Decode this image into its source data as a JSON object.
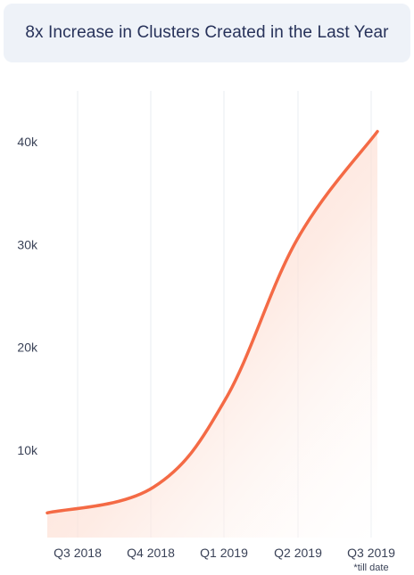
{
  "chart_data": {
    "type": "area",
    "title": "8x Increase in Clusters Created in the Last Year",
    "categories": [
      "Q3 2018",
      "Q4 2018",
      "Q1 2019",
      "Q2 2019",
      "Q3 2019"
    ],
    "series": [
      {
        "values": [
          3900,
          6400,
          15000,
          30500,
          41000
        ]
      }
    ],
    "y_ticks": [
      {
        "value": 10000,
        "label": "10k"
      },
      {
        "value": 20000,
        "label": "20k"
      },
      {
        "value": 30000,
        "label": "30k"
      },
      {
        "value": 40000,
        "label": "40k"
      }
    ],
    "annotation": "*till date",
    "grid": "vertical",
    "xlabel": "",
    "ylabel": "",
    "ylim": [
      0,
      45000
    ],
    "colors": {
      "line": "#f46a45",
      "area": "#fde0d5",
      "grid": "#e9ecf1",
      "title_bg": "#eef2f8",
      "title_text": "#27325a"
    }
  }
}
